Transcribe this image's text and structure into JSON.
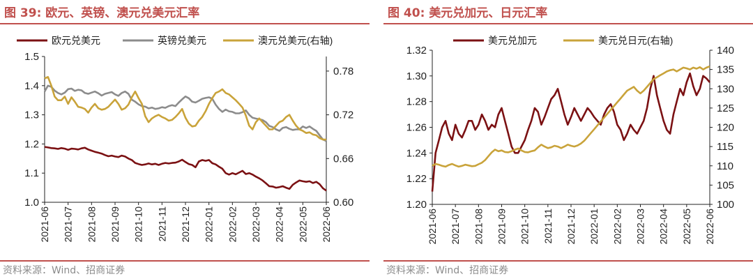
{
  "figures": [
    {
      "title": "图 39:  欧元、英镑、澳元兑美元汇率",
      "source": "资料来源：Wind、招商证券"
    },
    {
      "title": "图 40:  美元兑加元、日元汇率",
      "source": "资料来源：Wind、招商证券"
    }
  ],
  "chart_data": [
    {
      "type": "line",
      "title": "图 39: 欧元、英镑、澳元兑美元汇率",
      "x_ticks": [
        "2021-06",
        "2021-07",
        "2021-08",
        "2021-09",
        "2021-10",
        "2021-11",
        "2021-12",
        "2022-01",
        "2022-02",
        "2022-03",
        "2022-04",
        "2022-05",
        "2022-06"
      ],
      "y_left": {
        "min": 1.0,
        "max": 1.5,
        "ticks": [
          "1.0",
          "1.1",
          "1.2",
          "1.3",
          "1.4",
          "1.5"
        ],
        "tick_values": [
          1.0,
          1.1,
          1.2,
          1.3,
          1.4,
          1.5
        ]
      },
      "y_right": {
        "min": 0.6,
        "max": 0.8,
        "ticks": [
          "0.60",
          "0.66",
          "0.72",
          "0.78"
        ],
        "tick_values": [
          0.6,
          0.66,
          0.72,
          0.78
        ]
      },
      "legend_position": "top",
      "series": [
        {
          "name": "欧元兑美元",
          "axis": "left",
          "color": "#7b1113",
          "values": [
            1.19,
            1.188,
            1.186,
            1.185,
            1.183,
            1.186,
            1.184,
            1.18,
            1.184,
            1.183,
            1.181,
            1.185,
            1.187,
            1.181,
            1.177,
            1.173,
            1.17,
            1.167,
            1.162,
            1.158,
            1.16,
            1.157,
            1.155,
            1.16,
            1.157,
            1.15,
            1.145,
            1.135,
            1.131,
            1.128,
            1.13,
            1.133,
            1.13,
            1.132,
            1.128,
            1.132,
            1.135,
            1.133,
            1.135,
            1.136,
            1.14,
            1.146,
            1.138,
            1.131,
            1.128,
            1.12,
            1.14,
            1.145,
            1.142,
            1.145,
            1.134,
            1.13,
            1.122,
            1.115,
            1.1,
            1.095,
            1.1,
            1.096,
            1.102,
            1.108,
            1.097,
            1.1,
            1.095,
            1.088,
            1.082,
            1.075,
            1.065,
            1.055,
            1.054,
            1.05,
            1.052,
            1.055,
            1.05,
            1.046,
            1.06,
            1.068,
            1.075,
            1.072,
            1.07,
            1.072,
            1.066,
            1.07,
            1.062,
            1.048,
            1.04
          ]
        },
        {
          "name": "英镑兑美元",
          "axis": "left",
          "color": "#8c8c8c",
          "values": [
            1.38,
            1.4,
            1.396,
            1.383,
            1.375,
            1.37,
            1.376,
            1.388,
            1.39,
            1.382,
            1.386,
            1.384,
            1.375,
            1.372,
            1.376,
            1.38,
            1.374,
            1.366,
            1.372,
            1.375,
            1.378,
            1.37,
            1.365,
            1.375,
            1.38,
            1.372,
            1.352,
            1.345,
            1.336,
            1.33,
            1.328,
            1.322,
            1.325,
            1.32,
            1.322,
            1.326,
            1.324,
            1.33,
            1.333,
            1.33,
            1.342,
            1.353,
            1.363,
            1.357,
            1.345,
            1.342,
            1.348,
            1.355,
            1.358,
            1.36,
            1.355,
            1.335,
            1.32,
            1.31,
            1.318,
            1.312,
            1.31,
            1.305,
            1.305,
            1.309,
            1.315,
            1.3,
            1.29,
            1.287,
            1.285,
            1.282,
            1.275,
            1.262,
            1.258,
            1.25,
            1.245,
            1.255,
            1.258,
            1.252,
            1.248,
            1.25,
            1.25,
            1.26,
            1.255,
            1.26,
            1.252,
            1.245,
            1.23,
            1.215,
            1.21
          ]
        },
        {
          "name": "澳元兑美元(右轴)",
          "axis": "right",
          "color": "#c9a33a",
          "values": [
            0.77,
            0.772,
            0.76,
            0.745,
            0.74,
            0.74,
            0.745,
            0.735,
            0.744,
            0.738,
            0.731,
            0.73,
            0.728,
            0.723,
            0.73,
            0.735,
            0.729,
            0.727,
            0.728,
            0.731,
            0.736,
            0.741,
            0.735,
            0.727,
            0.729,
            0.734,
            0.744,
            0.752,
            0.743,
            0.735,
            0.718,
            0.71,
            0.715,
            0.718,
            0.72,
            0.717,
            0.715,
            0.712,
            0.713,
            0.717,
            0.722,
            0.728,
            0.716,
            0.708,
            0.704,
            0.705,
            0.712,
            0.717,
            0.725,
            0.735,
            0.743,
            0.75,
            0.752,
            0.755,
            0.75,
            0.748,
            0.744,
            0.74,
            0.735,
            0.73,
            0.719,
            0.705,
            0.7,
            0.71,
            0.715,
            0.71,
            0.705,
            0.7,
            0.7,
            0.705,
            0.71,
            0.712,
            0.717,
            0.72,
            0.712,
            0.705,
            0.7,
            0.698,
            0.695,
            0.696,
            0.693,
            0.692,
            0.688,
            0.686,
            0.686
          ]
        }
      ]
    },
    {
      "type": "line",
      "title": "图 40: 美元兑加元、日元汇率",
      "x_ticks": [
        "2021-06",
        "2021-07",
        "2021-08",
        "2021-09",
        "2021-10",
        "2021-11",
        "2021-12",
        "2022-01",
        "2022-02",
        "2022-03",
        "2022-04",
        "2022-05",
        "2022-06"
      ],
      "y_left": {
        "min": 1.2,
        "max": 1.32,
        "ticks": [
          "1.20",
          "1.22",
          "1.24",
          "1.26",
          "1.28",
          "1.30",
          "1.32"
        ],
        "tick_values": [
          1.2,
          1.22,
          1.24,
          1.26,
          1.28,
          1.3,
          1.32
        ]
      },
      "y_right": {
        "min": 100,
        "max": 140,
        "ticks": [
          "100",
          "105",
          "110",
          "115",
          "120",
          "125",
          "130",
          "135",
          "140"
        ],
        "tick_values": [
          100,
          105,
          110,
          115,
          120,
          125,
          130,
          135,
          140
        ]
      },
      "legend_position": "top",
      "series": [
        {
          "name": "美元兑加元",
          "axis": "left",
          "color": "#7b1113",
          "values": [
            1.21,
            1.24,
            1.25,
            1.26,
            1.265,
            1.255,
            1.25,
            1.262,
            1.255,
            1.252,
            1.258,
            1.265,
            1.265,
            1.258,
            1.262,
            1.27,
            1.265,
            1.258,
            1.262,
            1.26,
            1.27,
            1.275,
            1.265,
            1.255,
            1.245,
            1.24,
            1.24,
            1.245,
            1.25,
            1.258,
            1.265,
            1.275,
            1.272,
            1.262,
            1.268,
            1.275,
            1.282,
            1.285,
            1.29,
            1.28,
            1.27,
            1.262,
            1.268,
            1.275,
            1.27,
            1.265,
            1.27,
            1.275,
            1.272,
            1.268,
            1.265,
            1.262,
            1.27,
            1.275,
            1.278,
            1.272,
            1.262,
            1.258,
            1.25,
            1.255,
            1.262,
            1.258,
            1.255,
            1.26,
            1.265,
            1.275,
            1.29,
            1.3,
            1.285,
            1.275,
            1.265,
            1.258,
            1.255,
            1.27,
            1.28,
            1.29,
            1.285,
            1.295,
            1.302,
            1.292,
            1.285,
            1.29,
            1.3,
            1.298,
            1.295
          ]
        },
        {
          "name": "美元兑日元(右轴)",
          "axis": "right",
          "color": "#c9a33a",
          "values": [
            110.0,
            110.5,
            110.3,
            110.0,
            109.8,
            110.2,
            110.5,
            110.1,
            109.8,
            110.0,
            110.3,
            110.1,
            109.9,
            110.0,
            110.4,
            110.8,
            111.5,
            112.5,
            113.5,
            114.2,
            113.8,
            114.0,
            113.6,
            113.5,
            113.8,
            114.2,
            114.5,
            114.0,
            113.6,
            113.5,
            113.8,
            114.0,
            114.8,
            115.5,
            115.0,
            114.6,
            114.8,
            115.2,
            115.0,
            114.6,
            115.0,
            115.5,
            115.2,
            115.0,
            115.3,
            115.8,
            116.5,
            117.5,
            118.5,
            119.5,
            120.5,
            121.5,
            122.5,
            123.5,
            124.5,
            125.5,
            126.5,
            127.5,
            128.5,
            129.5,
            130.0,
            130.5,
            129.5,
            128.8,
            129.5,
            130.5,
            131.5,
            132.5,
            133.0,
            133.5,
            134.0,
            134.5,
            134.8,
            135.0,
            134.5,
            135.0,
            135.5,
            135.3,
            135.0,
            135.5,
            135.2,
            135.6,
            135.0,
            135.5,
            135.8
          ]
        }
      ]
    }
  ]
}
